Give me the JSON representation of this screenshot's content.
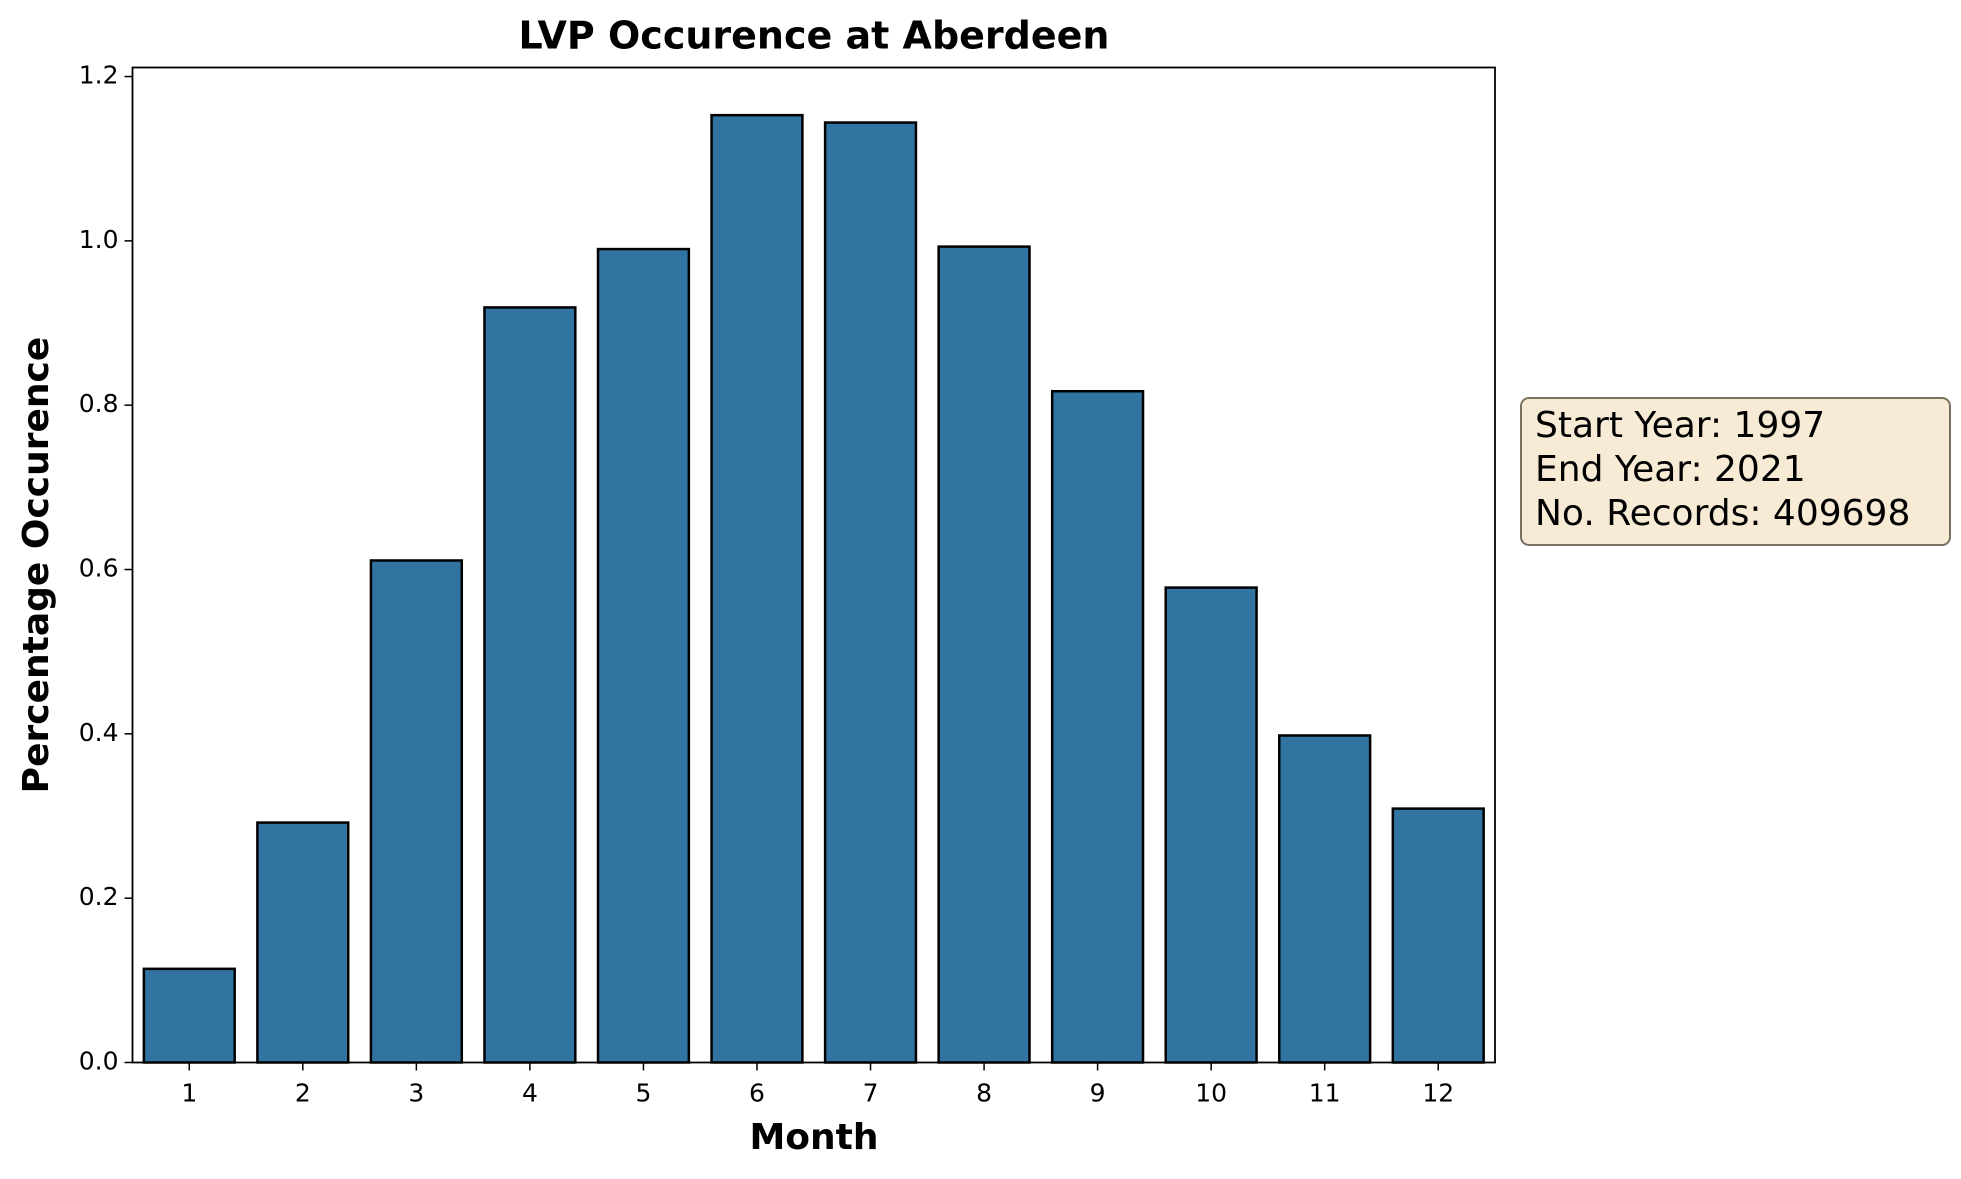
{
  "chart_data": {
    "type": "bar",
    "title": "LVP Occurence at Aberdeen",
    "xlabel": "Month",
    "ylabel": "Percentage Occurence",
    "categories": [
      "1",
      "2",
      "3",
      "4",
      "5",
      "6",
      "7",
      "8",
      "9",
      "10",
      "11",
      "12"
    ],
    "values": [
      0.114,
      0.292,
      0.611,
      0.919,
      0.99,
      1.153,
      1.144,
      0.993,
      0.817,
      0.578,
      0.398,
      0.309
    ],
    "color": "#3274a1",
    "ylim": [
      0,
      1.211
    ],
    "yticks": [
      {
        "value": 0,
        "label": "0.0"
      },
      0.2,
      0.4,
      0.6,
      0.8,
      {
        "value": 1,
        "label": "1.0"
      },
      1.2
    ],
    "grid": false,
    "annotation": [
      "Start Year: 1997",
      "End Year: 2021",
      "No. Records: 409698"
    ]
  }
}
